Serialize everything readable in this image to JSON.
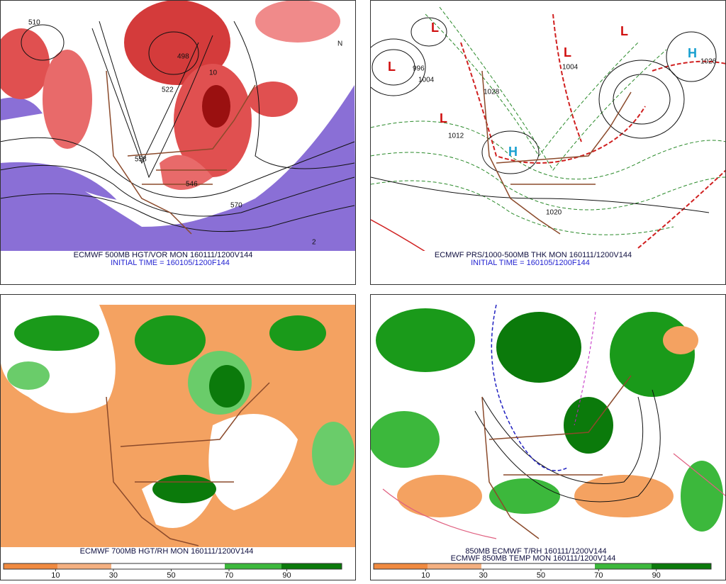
{
  "panels": [
    {
      "caption": [
        "ECMWF 500MB HGT/VOR MON 160111/1200V144",
        "INITIAL TIME = 160105/1200F144"
      ],
      "labels": [
        "510",
        "498",
        "522",
        "546",
        "558",
        "570",
        "10",
        "N",
        "2"
      ]
    },
    {
      "caption": [
        "ECMWF PRS/1000-500MB THK MON 160111/1200V144",
        "INITIAL TIME = 160105/1200F144"
      ],
      "labels": [
        "L",
        "L",
        "L",
        "L",
        "L",
        "H",
        "H",
        "996",
        "1004",
        "1012",
        "1028",
        "1020",
        "1004",
        "1026"
      ]
    },
    {
      "caption": [
        "ECMWF 700MB HGT/RH MON 160111/1200V144"
      ],
      "colorbar": {
        "ticks": [
          10,
          30,
          50,
          70,
          90
        ]
      }
    },
    {
      "caption": [
        "850MB ECMWF T/RH 160111/1200V144",
        "ECMWF 850MB TEMP MON 160111/1200V144"
      ],
      "colorbar": {
        "ticks": [
          10,
          30,
          50,
          70,
          90
        ]
      }
    }
  ]
}
